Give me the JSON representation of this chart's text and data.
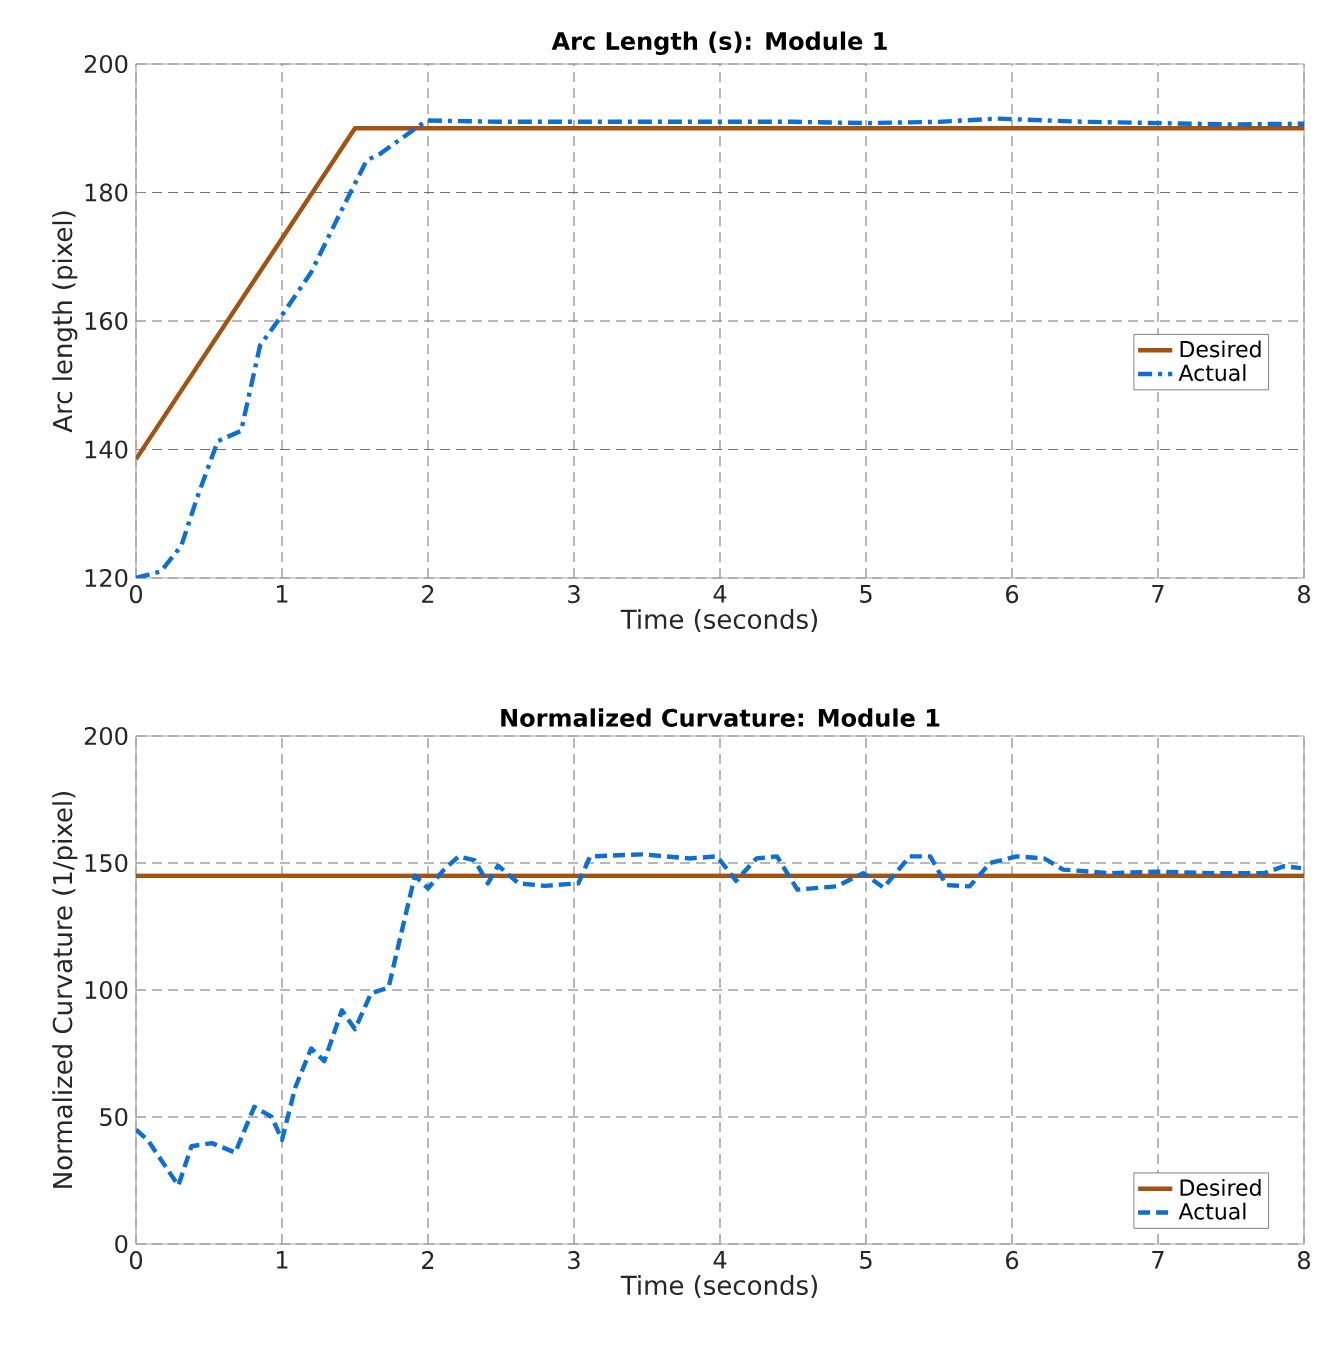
{
  "chart_data": [
    {
      "type": "line",
      "title": "Arc Length (s): Module 1",
      "xlabel": "Time (seconds)",
      "ylabel": "Arc length (pixel)",
      "xlim": [
        0,
        8
      ],
      "ylim": [
        120,
        200
      ],
      "xticks": [
        0,
        1,
        2,
        3,
        4,
        5,
        6,
        7,
        8
      ],
      "yticks": [
        120,
        140,
        160,
        180,
        200
      ],
      "grid": true,
      "legend": "right",
      "series": [
        {
          "name": "Desired",
          "color": "#a3520f",
          "line_style": "solid",
          "x": [
            0,
            1.5,
            8
          ],
          "values": [
            138.5,
            190,
            190
          ]
        },
        {
          "name": "Actual",
          "color": "#0b6fd6",
          "line_style": "dashdot",
          "x": [
            0,
            0.17,
            0.31,
            0.42,
            0.56,
            0.72,
            0.85,
            1.0,
            1.2,
            1.42,
            1.58,
            1.67,
            1.83,
            1.99,
            2.5,
            3,
            3.5,
            4,
            4.5,
            5,
            5.5,
            5.9,
            6.5,
            7,
            7.5,
            8
          ],
          "values": [
            120,
            121,
            125,
            132.6,
            141.3,
            142.9,
            156.2,
            160.9,
            167.6,
            177.8,
            185,
            186,
            188.6,
            191.2,
            191,
            191,
            191,
            191,
            191,
            190.8,
            191,
            191.5,
            191,
            190.8,
            190.6,
            190.7
          ]
        }
      ]
    },
    {
      "type": "line",
      "title": "Normalized Curvature: Module 1",
      "xlabel": "Time (seconds)",
      "ylabel": "Normalized Curvature (1/pixel)",
      "xlim": [
        0,
        8
      ],
      "ylim": [
        0,
        200
      ],
      "xticks": [
        0,
        1,
        2,
        3,
        4,
        5,
        6,
        7,
        8
      ],
      "yticks": [
        0,
        50,
        100,
        150,
        200
      ],
      "grid": true,
      "legend": "bottom right",
      "series": [
        {
          "name": "Desired",
          "color": "#a3520f",
          "line_style": "solid",
          "x": [
            0,
            8
          ],
          "values": [
            145,
            145
          ]
        },
        {
          "name": "Actual",
          "color": "#0b6fd6",
          "line_style": "dashed",
          "x": [
            0,
            0.08,
            0.29,
            0.38,
            0.52,
            0.68,
            0.81,
            0.93,
            1.0,
            1.09,
            1.2,
            1.29,
            1.41,
            1.5,
            1.61,
            1.73,
            1.84,
            1.91,
            2.0,
            2.11,
            2.21,
            2.32,
            2.41,
            2.48,
            2.62,
            2.8,
            3.03,
            3.11,
            3.47,
            3.79,
            3.98,
            4.11,
            4.25,
            4.39,
            4.53,
            4.8,
            4.98,
            5.12,
            5.3,
            5.44,
            5.55,
            5.71,
            5.85,
            6.03,
            6.22,
            6.35,
            6.67,
            6.99,
            7.36,
            7.73,
            7.86,
            7.98
          ],
          "values": [
            45,
            41,
            23,
            38.5,
            39.7,
            36,
            54,
            50,
            41,
            61.5,
            77,
            72,
            92,
            84.6,
            98.7,
            101,
            128,
            145,
            140,
            147.4,
            152.6,
            151,
            142,
            149,
            142,
            141,
            142,
            152.6,
            153.4,
            151.8,
            152.6,
            143,
            151.8,
            152.6,
            139.5,
            140.8,
            146,
            140.3,
            152.6,
            152.6,
            141.3,
            140.8,
            150,
            152.6,
            151.8,
            147.4,
            146,
            146.6,
            146,
            146,
            148.7,
            148
          ]
        }
      ]
    }
  ]
}
